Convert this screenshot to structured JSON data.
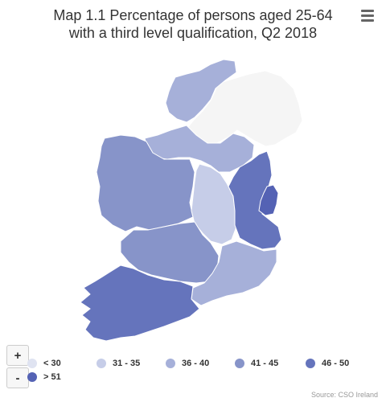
{
  "title_line1": "Map 1.1 Percentage of persons aged 25-64",
  "title_line2": "with a third level qualification, Q2 2018",
  "menu_icon": "hamburger-icon",
  "zoom": {
    "in_label": "+",
    "out_label": "-"
  },
  "legend": [
    {
      "label": "< 30",
      "color": "#dfe3f1"
    },
    {
      "label": "31 - 35",
      "color": "#c6cde8"
    },
    {
      "label": "36 - 40",
      "color": "#a6b0d9"
    },
    {
      "label": "41 - 45",
      "color": "#8794c9"
    },
    {
      "label": "46 - 50",
      "color": "#6574bc"
    },
    {
      "label": "> 51",
      "color": "#5462b4"
    }
  ],
  "source": "Source: CSO Ireland",
  "no_data_color": "#f5f5f5",
  "border_color": "#ffffff"
}
